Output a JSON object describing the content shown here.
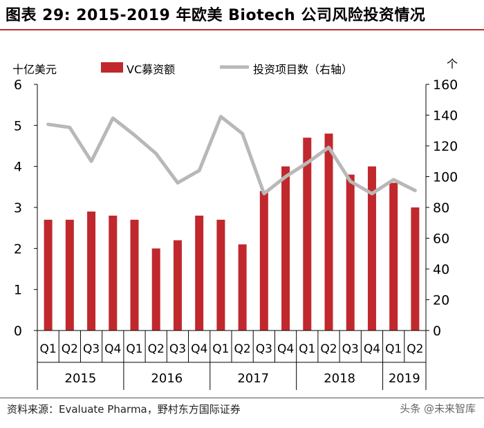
{
  "header": {
    "title": "图表 29: 2015-2019 年欧美 Biotech 公司风险投资情况"
  },
  "footer": {
    "source": "资料来源：Evaluate Pharma，野村东方国际证券",
    "watermark": "头条 @未来智库"
  },
  "chart_data": {
    "type": "bar",
    "left_unit": "十亿美元",
    "right_unit": "个",
    "categories": [
      "Q1",
      "Q2",
      "Q3",
      "Q4",
      "Q1",
      "Q2",
      "Q3",
      "Q4",
      "Q1",
      "Q2",
      "Q3",
      "Q4",
      "Q1",
      "Q2",
      "Q3",
      "Q4",
      "Q1",
      "Q2"
    ],
    "years": [
      {
        "label": "2015",
        "start": 0,
        "count": 4
      },
      {
        "label": "2016",
        "start": 4,
        "count": 4
      },
      {
        "label": "2017",
        "start": 8,
        "count": 4
      },
      {
        "label": "2018",
        "start": 12,
        "count": 4
      },
      {
        "label": "2019",
        "start": 16,
        "count": 2
      }
    ],
    "series": [
      {
        "name": "VC募资额",
        "type": "bar",
        "axis": "left",
        "color": "#c0282d",
        "values": [
          2.7,
          2.7,
          2.9,
          2.8,
          2.7,
          2.0,
          2.2,
          2.8,
          2.7,
          2.1,
          3.4,
          4.0,
          4.7,
          4.8,
          3.8,
          4.0,
          3.6,
          3.0
        ]
      },
      {
        "name": "投资项目数（右轴）",
        "type": "line",
        "axis": "right",
        "color": "#b8b8b8",
        "values": [
          134,
          132,
          110,
          138,
          127,
          115,
          96,
          104,
          139,
          128,
          89,
          100,
          109,
          119,
          97,
          89,
          98,
          91
        ]
      }
    ],
    "ylim_left": [
      0,
      6
    ],
    "yticks_left": [
      0,
      1,
      2,
      3,
      4,
      5,
      6
    ],
    "ylim_right": [
      0,
      160
    ],
    "yticks_right": [
      0,
      20,
      40,
      60,
      80,
      100,
      120,
      140,
      160
    ],
    "legend": "top"
  }
}
